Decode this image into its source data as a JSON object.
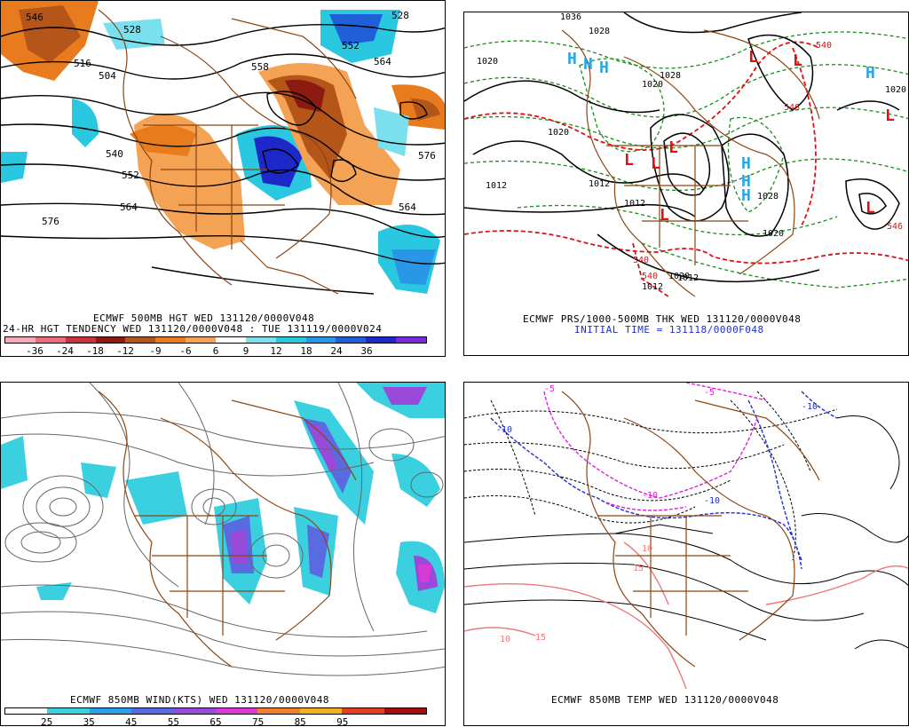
{
  "panels": {
    "top_left": {
      "caption_line1": "ECMWF 500MB HGT WED 131120/0000V048",
      "caption_line2": "24-HR HGT TENDENCY WED 131120/0000V048 : TUE 131119/0000V024",
      "colorbar_colors": [
        "#f7a8b8",
        "#e86d7a",
        "#c8323f",
        "#8b1a10",
        "#b4551a",
        "#e87b1d",
        "#f4a253",
        "#ffffff",
        "#7ae0ee",
        "#2ac8e0",
        "#2a96e8",
        "#1f5fd8",
        "#1c28c8",
        "#7a2ad8"
      ],
      "colorbar_ticks": [
        "-36",
        "-24",
        "-18",
        "-12",
        "-9",
        "-6",
        "6",
        "9",
        "12",
        "18",
        "24",
        "36"
      ],
      "contour_labels": [
        "546",
        "528",
        "516",
        "504",
        "540",
        "552",
        "564",
        "576",
        "558",
        "552",
        "564",
        "564",
        "576",
        "528"
      ]
    },
    "top_right": {
      "caption_line1": "ECMWF PRS/1000-500MB THK WED 131120/0000V048",
      "caption_line2": "INITIAL TIME = 131118/0000F048",
      "pressure_labels": [
        "1036",
        "1028",
        "1020",
        "1020",
        "1012",
        "1012",
        "1012",
        "1020",
        "1020",
        "1012",
        "1028",
        "1020",
        "1020",
        "1028",
        "1012"
      ],
      "thickness_labels": [
        "540",
        "540",
        "540",
        "546",
        "546"
      ],
      "high_letter": "H",
      "low_letter": "L"
    },
    "bottom_left": {
      "caption_line1": "ECMWF 850MB WIND(KTS) WED 131120/0000V048",
      "colorbar_colors": [
        "#ffffff",
        "#3ad0e0",
        "#2aa0e8",
        "#5a6ae0",
        "#9a4ad8",
        "#d83ad8",
        "#f08030",
        "#f0b020",
        "#e04020",
        "#a01010"
      ],
      "colorbar_ticks": [
        "25",
        "35",
        "45",
        "55",
        "65",
        "75",
        "85",
        "95"
      ]
    },
    "bottom_right": {
      "caption_line1": "ECMWF 850MB TEMP WED 131120/0000V048",
      "isotherm_labels": [
        "-10",
        "-10",
        "-5",
        "-10",
        "-10",
        "-5",
        "10",
        "10",
        "15",
        "15"
      ]
    }
  },
  "colors": {
    "height_contour": "#000000",
    "coastline": "#8b4513",
    "thickness_red": "#e01010",
    "thickness_green": "#1a8a1a",
    "high_blue": "#2aa6e8",
    "isotherm_blue": "#1f2fd0",
    "isotherm_magenta": "#e020e0",
    "isotherm_pink": "#f07878"
  }
}
